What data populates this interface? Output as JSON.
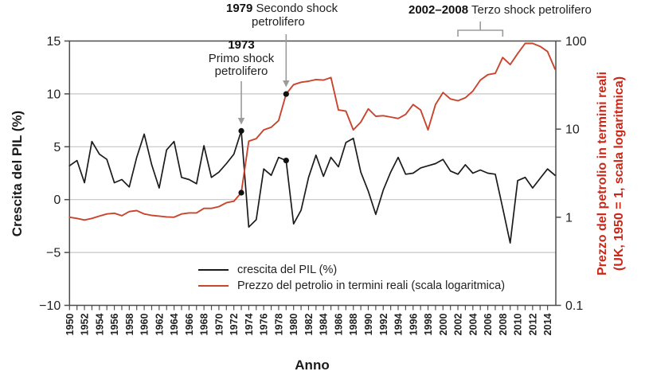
{
  "chart_data": {
    "type": "line",
    "xlabel": "Anno",
    "ylabel_left": "Crescita del PIL (%)",
    "ylabel_right_line1": "Prezzo del petrolio in termini reali",
    "ylabel_right_line2": "(UK, 1950 = 1, scala logaritmica)",
    "x_range": [
      1950,
      2015
    ],
    "left_axis": {
      "range": [
        -10,
        15
      ],
      "ticks": [
        15,
        10,
        5,
        0,
        -5,
        -10
      ],
      "tick_labels": [
        "15",
        "10",
        "5",
        "0",
        "−5",
        "−10"
      ],
      "gridlines_at": [
        10,
        5,
        0,
        -5
      ]
    },
    "right_axis": {
      "scale": "log",
      "range": [
        0.1,
        100
      ],
      "ticks": [
        100,
        10,
        1,
        0.1
      ],
      "tick_labels": [
        "100",
        "10",
        "1",
        "0.1"
      ]
    },
    "x_tick_labels": [
      "1950",
      "1952",
      "1954",
      "1956",
      "1958",
      "1960",
      "1962",
      "1964",
      "1966",
      "1968",
      "1970",
      "1972",
      "1974",
      "1976",
      "1978",
      "1980",
      "1982",
      "1984",
      "1986",
      "1988",
      "1990",
      "1992",
      "1994",
      "1996",
      "1998",
      "2000",
      "2002",
      "2004",
      "2006",
      "2008",
      "2010",
      "2012",
      "2014"
    ],
    "years": [
      1950,
      1951,
      1952,
      1953,
      1954,
      1955,
      1956,
      1957,
      1958,
      1959,
      1960,
      1961,
      1962,
      1963,
      1964,
      1965,
      1966,
      1967,
      1968,
      1969,
      1970,
      1971,
      1972,
      1973,
      1974,
      1975,
      1976,
      1977,
      1978,
      1979,
      1980,
      1981,
      1982,
      1983,
      1984,
      1985,
      1986,
      1987,
      1988,
      1989,
      1990,
      1991,
      1992,
      1993,
      1994,
      1995,
      1996,
      1997,
      1998,
      1999,
      2000,
      2001,
      2002,
      2003,
      2004,
      2005,
      2006,
      2007,
      2008,
      2009,
      2010,
      2011,
      2012,
      2013,
      2014,
      2015
    ],
    "series": [
      {
        "name": "crescita del PIL (%)",
        "axis": "left",
        "color": "#1b1b1b",
        "values": [
          3.2,
          3.7,
          1.6,
          5.5,
          4.3,
          3.8,
          1.6,
          1.9,
          1.2,
          4.0,
          6.2,
          3.3,
          1.1,
          4.7,
          5.5,
          2.1,
          1.9,
          1.5,
          5.1,
          2.1,
          2.6,
          3.4,
          4.3,
          6.5,
          -2.6,
          -1.9,
          2.9,
          2.3,
          4.0,
          3.7,
          -2.3,
          -1.0,
          2.1,
          4.2,
          2.2,
          4.0,
          3.1,
          5.4,
          5.8,
          2.6,
          0.8,
          -1.4,
          0.9,
          2.6,
          4.0,
          2.4,
          2.5,
          3.0,
          3.2,
          3.4,
          3.8,
          2.7,
          2.4,
          3.3,
          2.5,
          2.8,
          2.5,
          2.4,
          -0.8,
          -4.1,
          1.8,
          2.1,
          1.1,
          2.0,
          2.9,
          2.3
        ]
      },
      {
        "name": "Prezzo del petrolio in termini reali (scala logaritmica)",
        "axis": "right",
        "color": "#c8452e",
        "values": [
          1.0,
          0.97,
          0.93,
          0.97,
          1.03,
          1.09,
          1.11,
          1.04,
          1.16,
          1.19,
          1.09,
          1.05,
          1.03,
          1.01,
          1.0,
          1.09,
          1.12,
          1.12,
          1.26,
          1.26,
          1.32,
          1.46,
          1.52,
          1.9,
          7.3,
          7.8,
          9.8,
          10.5,
          12.5,
          25,
          32,
          34,
          35,
          36.5,
          36,
          38.5,
          16.5,
          16,
          9.8,
          12,
          17,
          14,
          14.2,
          13.7,
          13.2,
          14.7,
          19,
          16.5,
          9.8,
          19,
          26,
          22,
          21,
          22.7,
          27,
          36,
          41.5,
          43,
          65,
          54,
          72,
          94,
          94,
          87,
          76,
          48
        ]
      }
    ],
    "markers": [
      {
        "series": 0,
        "year": 1973
      },
      {
        "series": 1,
        "year": 1973
      },
      {
        "series": 0,
        "year": 1979
      },
      {
        "series": 1,
        "year": 1979
      }
    ],
    "annotations": [
      {
        "year": "1973",
        "line1": "Primo shock",
        "line2": "petrolifero",
        "style": "arrow",
        "anchor_year": 1973
      },
      {
        "year": "1979",
        "line1": "Secondo shock",
        "line2": "petrolifero",
        "style": "arrow",
        "anchor_year": 1979
      },
      {
        "year": "2002–2008",
        "text": "Terzo shock petrolifero",
        "style": "bracket",
        "from_year": 2002,
        "to_year": 2008
      }
    ],
    "legend_position": "bottom-center-inside",
    "grid": "horizontal-only"
  },
  "colors": {
    "gdp_line": "#1b1b1b",
    "oil_line": "#c8452e",
    "right_axis_title": "#cc2617",
    "annotation_gray": "#9b9b9b",
    "gridline": "#c6c6c6",
    "axis": "#4c4c4c",
    "text": "#222222"
  }
}
